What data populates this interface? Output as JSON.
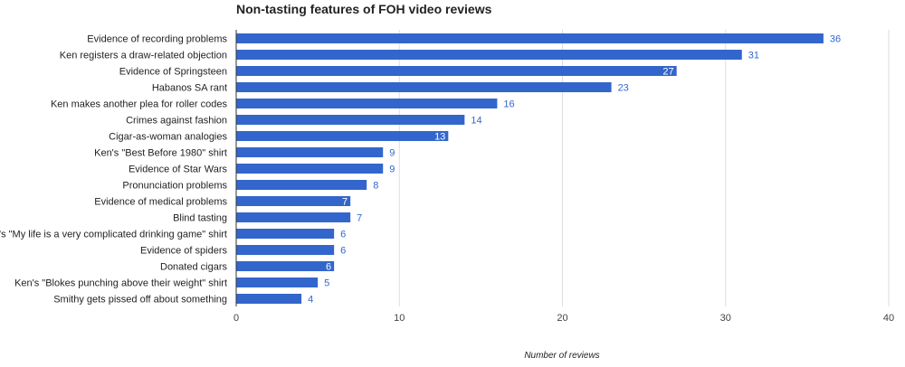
{
  "chart_data": {
    "type": "bar",
    "orientation": "horizontal",
    "title": "Non-tasting features of FOH video reviews",
    "xlabel": "Number of reviews",
    "ylabel": "",
    "xlim": [
      0,
      40
    ],
    "ticks": [
      0,
      10,
      20,
      30,
      40
    ],
    "grid": true,
    "legend": "none",
    "bar_color": "#3366cc",
    "categories": [
      "Evidence of recording problems",
      "Ken registers a draw-related objection",
      "Evidence of Springsteen",
      "Habanos SA rant",
      "Ken makes another plea for roller codes",
      "Crimes against fashion",
      "Cigar-as-woman analogies",
      "Ken's \"Best Before 1980\" shirt",
      "Evidence of Star Wars",
      "Pronunciation problems",
      "Evidence of medical problems",
      "Blind tasting",
      "Ken's \"My life is a very complicated drinking game\" shirt",
      "Evidence of spiders",
      "Donated cigars",
      "Ken's \"Blokes punching above their weight\" shirt",
      "Smithy gets pissed off about something"
    ],
    "values": [
      36,
      31,
      27,
      23,
      16,
      14,
      13,
      9,
      9,
      8,
      7,
      7,
      6,
      6,
      6,
      5,
      4
    ],
    "label_inside": [
      false,
      false,
      true,
      false,
      false,
      false,
      true,
      false,
      false,
      false,
      true,
      false,
      false,
      false,
      true,
      false,
      false
    ]
  }
}
